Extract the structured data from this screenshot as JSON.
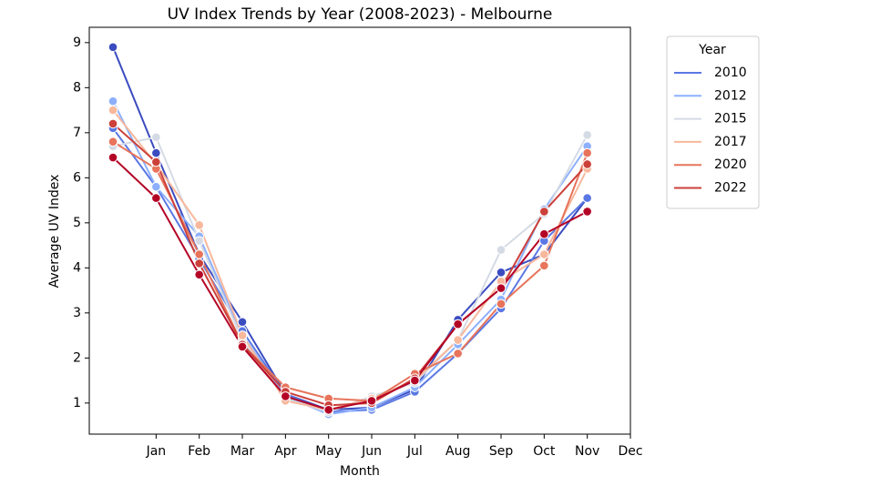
{
  "chart_data": {
    "type": "line",
    "title": "UV Index Trends by Year (2008-2023) - Melbourne",
    "x_label": "Month",
    "y_label": "Average UV Index",
    "x": [
      0,
      1,
      2,
      3,
      4,
      5,
      6,
      7,
      8,
      9,
      10,
      11
    ],
    "xlim": [
      -0.55,
      12
    ],
    "xticks": [
      {
        "value": 1,
        "label": "Jan"
      },
      {
        "value": 2,
        "label": "Feb"
      },
      {
        "value": 3,
        "label": "Mar"
      },
      {
        "value": 4,
        "label": "Apr"
      },
      {
        "value": 5,
        "label": "May"
      },
      {
        "value": 6,
        "label": "Jun"
      },
      {
        "value": 7,
        "label": "Jul"
      },
      {
        "value": 8,
        "label": "Aug"
      },
      {
        "value": 9,
        "label": "Sep"
      },
      {
        "value": 10,
        "label": "Oct"
      },
      {
        "value": 11,
        "label": "Nov"
      },
      {
        "value": 12,
        "label": "Dec"
      }
    ],
    "ylim": [
      0.31,
      9.34
    ],
    "yticks": [
      1,
      2,
      3,
      4,
      5,
      6,
      7,
      8,
      9
    ],
    "legend_title": "Year",
    "legend_position": "outside-upper-right",
    "series": [
      {
        "color": "#3b4cc0",
        "values": [
          8.9,
          6.55,
          4.3,
          2.8,
          1.2,
          0.85,
          0.9,
          1.3,
          2.85,
          3.9,
          4.3,
          5.55
        ]
      },
      {
        "name": "2010",
        "color": "#5a78e4",
        "values": [
          7.1,
          5.8,
          4.2,
          2.6,
          1.2,
          0.8,
          0.85,
          1.25,
          2.1,
          3.1,
          4.6,
          5.55
        ]
      },
      {
        "name": "2012",
        "color": "#8db0fe",
        "values": [
          7.7,
          5.8,
          4.7,
          2.5,
          1.15,
          0.75,
          0.9,
          1.35,
          2.3,
          3.3,
          5.3,
          6.7
        ]
      },
      {
        "name": "2015",
        "color": "#d5dbe5",
        "values": [
          6.7,
          6.9,
          4.6,
          2.4,
          1.1,
          0.8,
          1.15,
          1.45,
          2.4,
          4.4,
          5.2,
          6.95
        ]
      },
      {
        "name": "2017",
        "color": "#f7b89c",
        "values": [
          7.5,
          6.3,
          4.95,
          2.5,
          1.05,
          0.85,
          1.1,
          1.5,
          2.4,
          3.7,
          4.3,
          6.2
        ]
      },
      {
        "name": "2020",
        "color": "#e7745b",
        "values": [
          6.8,
          6.2,
          4.3,
          2.3,
          1.35,
          1.1,
          1.05,
          1.65,
          2.1,
          3.2,
          4.05,
          6.55
        ]
      },
      {
        "name": "2022",
        "color": "#cc403a",
        "values": [
          7.2,
          6.35,
          4.1,
          2.3,
          1.25,
          0.95,
          1.0,
          1.55,
          2.75,
          3.55,
          5.25,
          6.3
        ]
      },
      {
        "color": "#b40426",
        "values": [
          6.45,
          5.55,
          3.85,
          2.25,
          1.15,
          0.85,
          1.05,
          1.5,
          2.75,
          3.55,
          4.75,
          5.25
        ]
      }
    ]
  }
}
